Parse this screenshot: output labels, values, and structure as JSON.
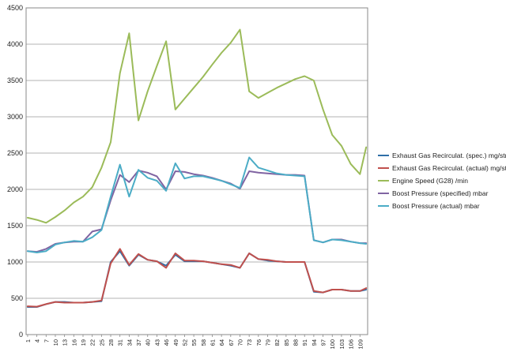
{
  "chart_data": {
    "type": "line",
    "title": "",
    "xlabel": "",
    "ylabel": "",
    "ylim": [
      0,
      4500
    ],
    "yticks": [
      0,
      500,
      1000,
      1500,
      2000,
      2500,
      3000,
      3500,
      4000,
      4500
    ],
    "x": [
      1,
      4,
      7,
      10,
      13,
      16,
      19,
      22,
      25,
      28,
      31,
      34,
      37,
      40,
      43,
      46,
      49,
      52,
      55,
      58,
      61,
      64,
      67,
      70,
      73,
      76,
      79,
      82,
      85,
      88,
      91,
      94,
      97,
      100,
      103,
      106,
      109,
      111
    ],
    "xticks": [
      "1",
      "4",
      "7",
      "10",
      "13",
      "16",
      "19",
      "22",
      "25",
      "28",
      "31",
      "34",
      "37",
      "40",
      "43",
      "46",
      "49",
      "52",
      "55",
      "58",
      "61",
      "64",
      "67",
      "70",
      "73",
      "76",
      "79",
      "82",
      "85",
      "88",
      "91",
      "94",
      "97",
      "100",
      "103",
      "106",
      "109"
    ],
    "gridlines": "horizontal",
    "legend_position": "right",
    "series": [
      {
        "name": "Exhaust Gas Recirculat. (spec.)  mg/str",
        "color": "#2f6fa7",
        "values": [
          380,
          380,
          420,
          450,
          450,
          440,
          440,
          450,
          460,
          1000,
          1150,
          950,
          1100,
          1030,
          1010,
          950,
          1100,
          1010,
          1010,
          1010,
          990,
          970,
          950,
          920,
          1120,
          1040,
          1020,
          1010,
          1000,
          1000,
          1000,
          590,
          580,
          620,
          620,
          600,
          600,
          620
        ]
      },
      {
        "name": "Exhaust Gas Recirculat. (actual)  mg/str",
        "color": "#c0504d",
        "values": [
          390,
          385,
          420,
          450,
          440,
          440,
          440,
          450,
          470,
          980,
          1180,
          960,
          1110,
          1030,
          1010,
          920,
          1120,
          1020,
          1020,
          1010,
          990,
          970,
          960,
          920,
          1120,
          1040,
          1030,
          1010,
          1000,
          1000,
          1000,
          600,
          580,
          620,
          620,
          600,
          600,
          640
        ]
      },
      {
        "name": "Engine Speed (G28)  /min",
        "color": "#9bbb59",
        "values": [
          1610,
          1580,
          1540,
          1620,
          1710,
          1820,
          1900,
          2030,
          2300,
          2650,
          3600,
          4150,
          2950,
          3350,
          3700,
          4040,
          3100,
          3250,
          3400,
          3550,
          3720,
          3880,
          4020,
          4200,
          3350,
          3260,
          3330,
          3400,
          3460,
          3520,
          3560,
          3500,
          3100,
          2750,
          2600,
          2350,
          2210,
          2580
        ]
      },
      {
        "name": "Boost Pressure (specified)  mbar",
        "color": "#8064a2",
        "values": [
          1150,
          1140,
          1180,
          1250,
          1270,
          1280,
          1280,
          1420,
          1450,
          1850,
          2200,
          2100,
          2260,
          2230,
          2180,
          2000,
          2250,
          2240,
          2210,
          2190,
          2160,
          2120,
          2080,
          2010,
          2250,
          2230,
          2220,
          2210,
          2200,
          2200,
          2190,
          1300,
          1270,
          1310,
          1310,
          1280,
          1260,
          1260
        ]
      },
      {
        "name": "Boost Pressure (actual)  mbar",
        "color": "#4bacc6",
        "values": [
          1150,
          1130,
          1150,
          1240,
          1270,
          1290,
          1280,
          1340,
          1440,
          1900,
          2340,
          1900,
          2270,
          2160,
          2120,
          1980,
          2360,
          2150,
          2180,
          2180,
          2150,
          2120,
          2070,
          2020,
          2440,
          2300,
          2260,
          2220,
          2200,
          2190,
          2180,
          1300,
          1270,
          1310,
          1300,
          1280,
          1260,
          1250
        ]
      }
    ]
  },
  "colors": {
    "plot_border": "#888888",
    "gridline": "#9a9a9a",
    "text": "#222222"
  }
}
